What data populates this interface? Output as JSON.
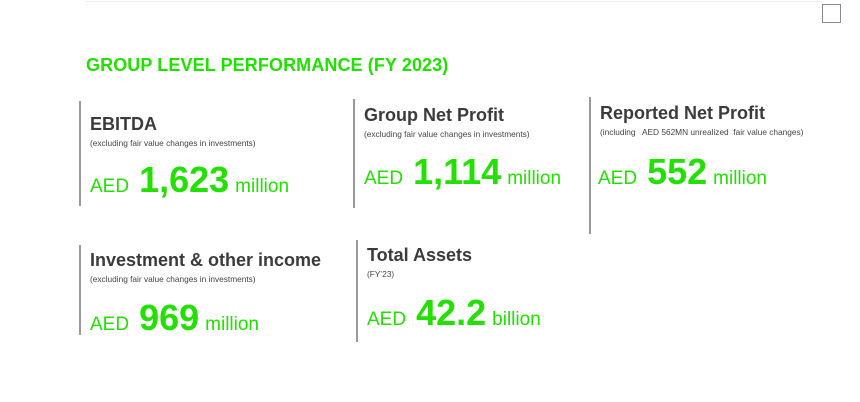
{
  "section_title": "GROUP LEVEL PERFORMANCE (FY 2023)",
  "colors": {
    "accent_green": "#22e000",
    "title_gray": "#3b3b3b",
    "divider_gray": "#9a9a9a"
  },
  "cards": {
    "ebitda": {
      "title": "EBITDA",
      "note": "(excluding fair value changes in investments)",
      "currency": "AED",
      "value": "1,623",
      "unit": "million"
    },
    "group_net_profit": {
      "title": "Group Net Profit",
      "note": "(excluding fair value changes in investments)",
      "currency": "AED",
      "value": "1,114",
      "unit": "million"
    },
    "reported_net_profit": {
      "title": "Reported Net Profit",
      "note": "(including   AED 562MN unrealized  fair value changes)",
      "currency": "AED",
      "value": "552",
      "unit": "million"
    },
    "investment_income": {
      "title": "Investment & other income",
      "note": "(excluding fair value changes in investments)",
      "currency": "AED",
      "value": "969",
      "unit": "million"
    },
    "total_assets": {
      "title": "Total Assets",
      "note": "(FY’23)",
      "currency": "AED",
      "value": "42.2",
      "unit": "billion"
    }
  }
}
